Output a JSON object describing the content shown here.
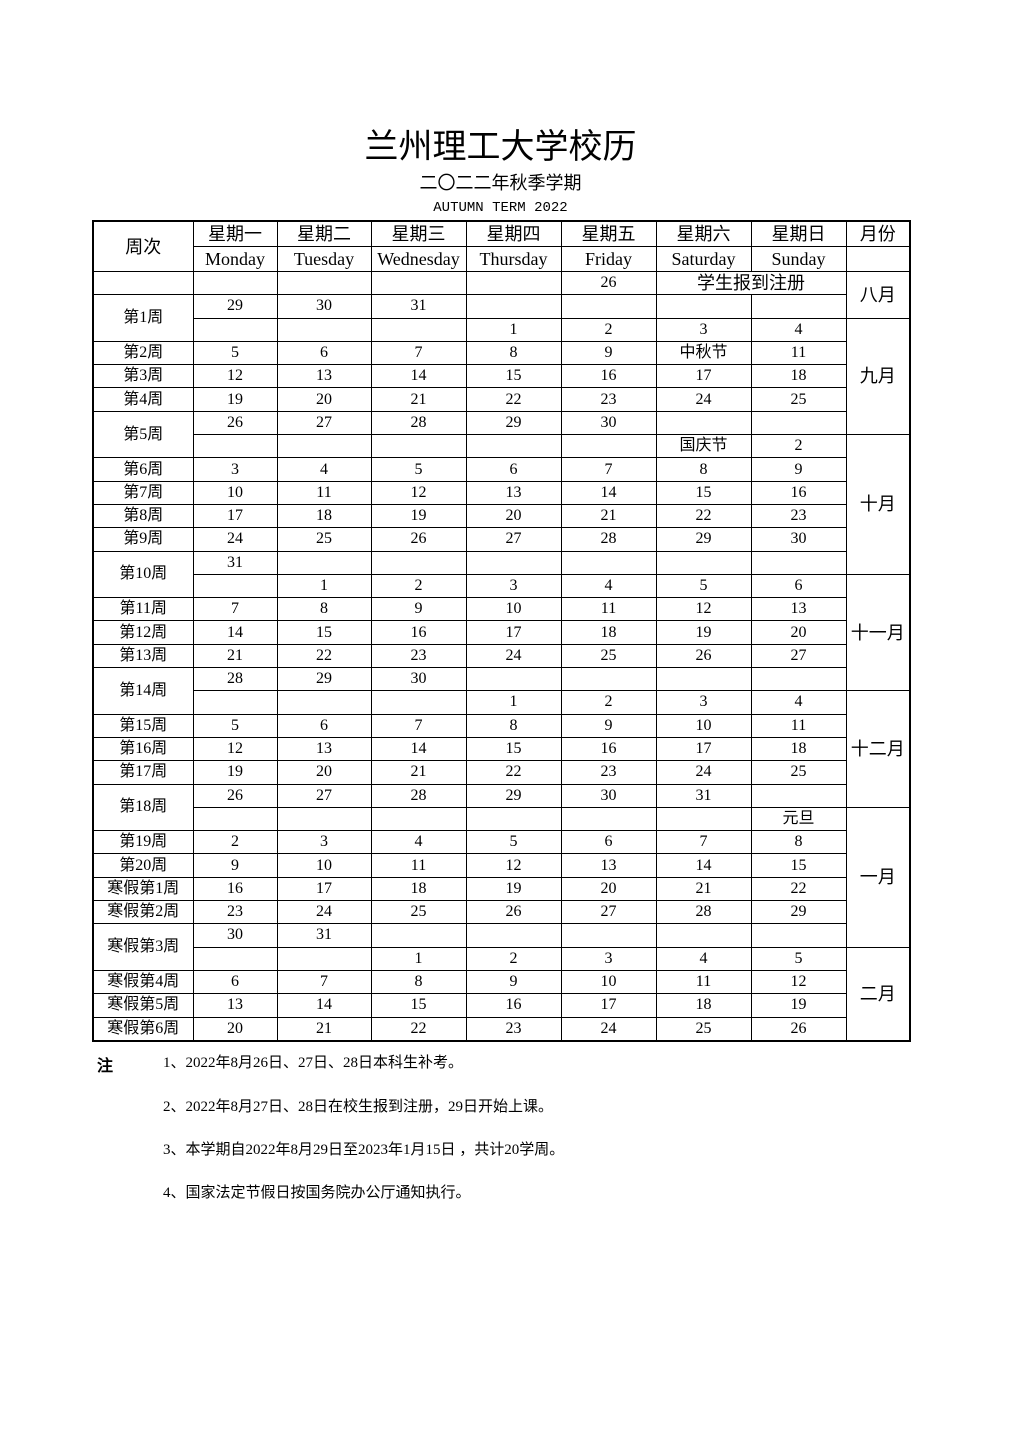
{
  "header": {
    "title": "兰州理工大学校历",
    "subtitle": "二〇二二年秋季学期",
    "term": "AUTUMN TERM 2022"
  },
  "calendar": {
    "week_header": "周次",
    "month_header": "月份",
    "days_cn": [
      "星期一",
      "星期二",
      "星期三",
      "星期四",
      "星期五",
      "星期六",
      "星期日"
    ],
    "days_en": [
      "Monday",
      "Tuesday",
      "Wednesday",
      "Thursday",
      "Friday",
      "Saturday",
      "Sunday"
    ],
    "weeks": [
      {
        "label": "",
        "rows": [
          [
            "",
            "",
            "",
            "",
            "26",
            "学生报到注册",
            null
          ]
        ]
      },
      {
        "label": "第1周",
        "rows": [
          [
            "29",
            "30",
            "31",
            "",
            "",
            "",
            ""
          ],
          [
            "",
            "",
            "",
            "1",
            "2",
            "3",
            "4"
          ]
        ]
      },
      {
        "label": "第2周",
        "rows": [
          [
            "5",
            "6",
            "7",
            "8",
            "9",
            "中秋节",
            "11"
          ]
        ]
      },
      {
        "label": "第3周",
        "rows": [
          [
            "12",
            "13",
            "14",
            "15",
            "16",
            "17",
            "18"
          ]
        ]
      },
      {
        "label": "第4周",
        "rows": [
          [
            "19",
            "20",
            "21",
            "22",
            "23",
            "24",
            "25"
          ]
        ]
      },
      {
        "label": "第5周",
        "rows": [
          [
            "26",
            "27",
            "28",
            "29",
            "30",
            "",
            ""
          ],
          [
            "",
            "",
            "",
            "",
            "",
            "国庆节",
            "2"
          ]
        ]
      },
      {
        "label": "第6周",
        "rows": [
          [
            "3",
            "4",
            "5",
            "6",
            "7",
            "8",
            "9"
          ]
        ]
      },
      {
        "label": "第7周",
        "rows": [
          [
            "10",
            "11",
            "12",
            "13",
            "14",
            "15",
            "16"
          ]
        ]
      },
      {
        "label": "第8周",
        "rows": [
          [
            "17",
            "18",
            "19",
            "20",
            "21",
            "22",
            "23"
          ]
        ]
      },
      {
        "label": "第9周",
        "rows": [
          [
            "24",
            "25",
            "26",
            "27",
            "28",
            "29",
            "30"
          ]
        ]
      },
      {
        "label": "第10周",
        "rows": [
          [
            "31",
            "",
            "",
            "",
            "",
            "",
            ""
          ],
          [
            "",
            "1",
            "2",
            "3",
            "4",
            "5",
            "6"
          ]
        ]
      },
      {
        "label": "第11周",
        "rows": [
          [
            "7",
            "8",
            "9",
            "10",
            "11",
            "12",
            "13"
          ]
        ]
      },
      {
        "label": "第12周",
        "rows": [
          [
            "14",
            "15",
            "16",
            "17",
            "18",
            "19",
            "20"
          ]
        ]
      },
      {
        "label": "第13周",
        "rows": [
          [
            "21",
            "22",
            "23",
            "24",
            "25",
            "26",
            "27"
          ]
        ]
      },
      {
        "label": "第14周",
        "rows": [
          [
            "28",
            "29",
            "30",
            "",
            "",
            "",
            ""
          ],
          [
            "",
            "",
            "",
            "1",
            "2",
            "3",
            "4"
          ]
        ]
      },
      {
        "label": "第15周",
        "rows": [
          [
            "5",
            "6",
            "7",
            "8",
            "9",
            "10",
            "11"
          ]
        ]
      },
      {
        "label": "第16周",
        "rows": [
          [
            "12",
            "13",
            "14",
            "15",
            "16",
            "17",
            "18"
          ]
        ]
      },
      {
        "label": "第17周",
        "rows": [
          [
            "19",
            "20",
            "21",
            "22",
            "23",
            "24",
            "25"
          ]
        ]
      },
      {
        "label": "第18周",
        "rows": [
          [
            "26",
            "27",
            "28",
            "29",
            "30",
            "31",
            ""
          ],
          [
            "",
            "",
            "",
            "",
            "",
            "",
            "元旦"
          ]
        ]
      },
      {
        "label": "第19周",
        "rows": [
          [
            "2",
            "3",
            "4",
            "5",
            "6",
            "7",
            "8"
          ]
        ]
      },
      {
        "label": "第20周",
        "rows": [
          [
            "9",
            "10",
            "11",
            "12",
            "13",
            "14",
            "15"
          ]
        ]
      },
      {
        "label": "寒假第1周",
        "rows": [
          [
            "16",
            "17",
            "18",
            "19",
            "20",
            "21",
            "22"
          ]
        ]
      },
      {
        "label": "寒假第2周",
        "rows": [
          [
            "23",
            "24",
            "25",
            "26",
            "27",
            "28",
            "29"
          ]
        ]
      },
      {
        "label": "寒假第3周",
        "rows": [
          [
            "30",
            "31",
            "",
            "",
            "",
            "",
            ""
          ],
          [
            "",
            "",
            "1",
            "2",
            "3",
            "4",
            "5"
          ]
        ]
      },
      {
        "label": "寒假第4周",
        "rows": [
          [
            "6",
            "7",
            "8",
            "9",
            "10",
            "11",
            "12"
          ]
        ]
      },
      {
        "label": "寒假第5周",
        "rows": [
          [
            "13",
            "14",
            "15",
            "16",
            "17",
            "18",
            "19"
          ]
        ]
      },
      {
        "label": "寒假第6周",
        "rows": [
          [
            "20",
            "21",
            "22",
            "23",
            "24",
            "25",
            "26"
          ]
        ]
      }
    ],
    "months": [
      "八月",
      "九月",
      "十月",
      "十一月",
      "十二月",
      "一月",
      "二月"
    ]
  },
  "notes": {
    "mark": "注",
    "items": [
      "1、2022年8月26日、27日、28日本科生补考。",
      "2、2022年8月27日、28日在校生报到注册，29日开始上课。",
      "3、本学期自2022年8月29日至2023年1月15日 ，共计20学周。",
      "4、国家法定节假日按国务院办公厅通知执行。"
    ]
  }
}
